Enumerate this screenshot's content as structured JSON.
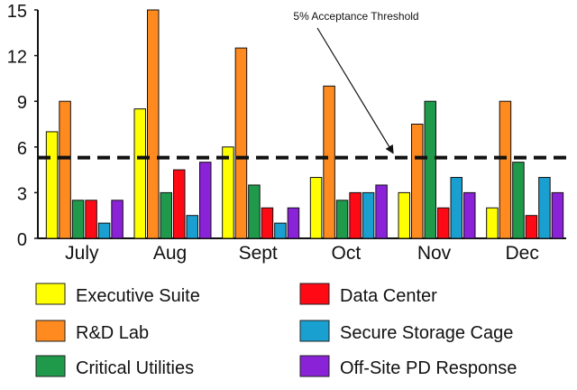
{
  "chart_data": {
    "type": "bar",
    "categories": [
      "July",
      "Aug",
      "Sept",
      "Oct",
      "Nov",
      "Dec"
    ],
    "series": [
      {
        "name": "Executive Suite",
        "color": "#ffff00",
        "values": [
          7,
          8.5,
          6,
          4,
          3,
          2
        ]
      },
      {
        "name": "R&D Lab",
        "color": "#ff8a1f",
        "values": [
          9,
          15,
          12.5,
          10,
          7.5,
          9
        ]
      },
      {
        "name": "Critical Utilities",
        "color": "#1f9a4a",
        "values": [
          2.5,
          3,
          3.5,
          2.5,
          9,
          5
        ]
      },
      {
        "name": "Data Center",
        "color": "#ff0a14",
        "values": [
          2.5,
          4.5,
          2,
          3,
          2,
          1.5
        ]
      },
      {
        "name": "Secure Storage Cage",
        "color": "#1aa0d0",
        "values": [
          1,
          1.5,
          1,
          3,
          4,
          4
        ]
      },
      {
        "name": "Off-Site PD Response",
        "color": "#8a22d8",
        "values": [
          2.5,
          5,
          2,
          3.5,
          3,
          3
        ]
      }
    ],
    "ylim": [
      0,
      15
    ],
    "yticks": [
      "0",
      "3",
      "6",
      "9",
      "12",
      "15"
    ],
    "threshold": {
      "value": 5.3,
      "label": "5% Acceptance Threshold"
    },
    "legend_placement": "bottom",
    "grid": false
  }
}
